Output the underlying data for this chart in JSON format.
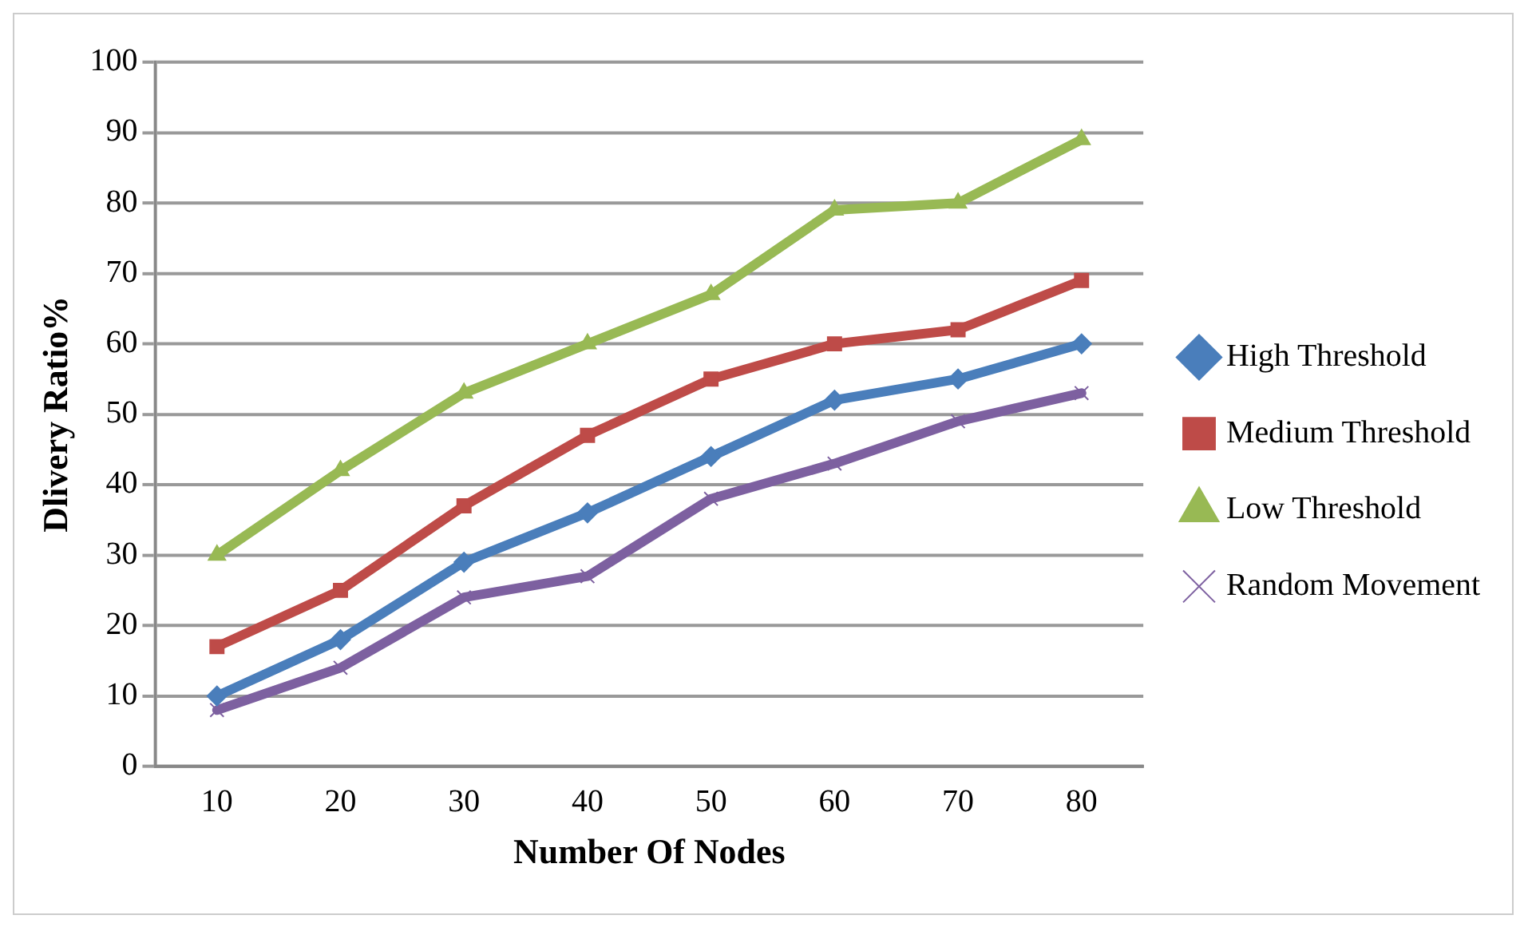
{
  "chart_data": {
    "type": "line",
    "xlabel": "Number Of Nodes",
    "ylabel": "Dlivery Ratio%",
    "categories": [
      "10",
      "20",
      "30",
      "40",
      "50",
      "60",
      "70",
      "80"
    ],
    "series": [
      {
        "name": "High Threshold",
        "color": "#4a7ebb",
        "marker": "diamond",
        "values": [
          10,
          18,
          29,
          36,
          44,
          52,
          55,
          60
        ]
      },
      {
        "name": "Medium Threshold",
        "color": "#be4b48",
        "marker": "square",
        "values": [
          17,
          25,
          37,
          47,
          55,
          60,
          62,
          69
        ]
      },
      {
        "name": "Low Threshold",
        "color": "#98b954",
        "marker": "triangle",
        "values": [
          30,
          42,
          53,
          60,
          67,
          79,
          80,
          89
        ]
      },
      {
        "name": "Random Movement",
        "color": "#7d60a0",
        "marker": "cross",
        "values": [
          8,
          14,
          24,
          27,
          38,
          43,
          49,
          53
        ]
      }
    ],
    "ylim": [
      0,
      100
    ],
    "yticks": [
      0,
      10,
      20,
      30,
      40,
      50,
      60,
      70,
      80,
      90,
      100
    ],
    "grid": "y",
    "legend": "right",
    "line_style": "solid"
  }
}
